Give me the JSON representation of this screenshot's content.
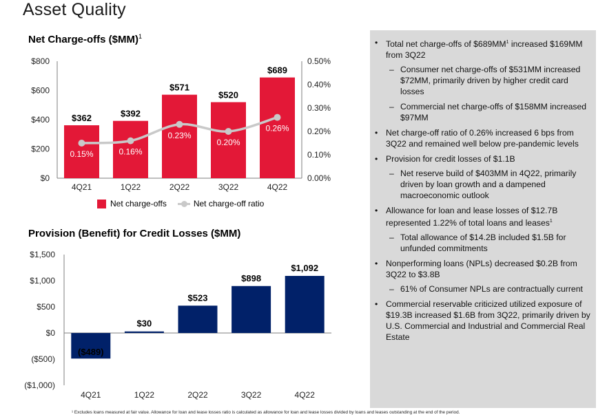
{
  "page": {
    "title": "Asset Quality"
  },
  "chart_data": [
    {
      "type": "bar",
      "title": "Net Charge-offs ($MM)",
      "title_footnote": "1",
      "categories": [
        "4Q21",
        "1Q22",
        "2Q22",
        "3Q22",
        "4Q22"
      ],
      "series": [
        {
          "name": "Net charge-offs",
          "type": "bar",
          "axis": "left",
          "color": "#e31837",
          "values": [
            362,
            392,
            571,
            520,
            689
          ],
          "labels": [
            "$362",
            "$392",
            "$571",
            "$520",
            "$689"
          ]
        },
        {
          "name": "Net charge-off ratio",
          "type": "line",
          "axis": "right",
          "color": "#c9c9c9",
          "values": [
            0.15,
            0.16,
            0.23,
            0.2,
            0.26
          ],
          "labels": [
            "0.15%",
            "0.16%",
            "0.23%",
            "0.20%",
            "0.26%"
          ]
        }
      ],
      "ylim": [
        0,
        800
      ],
      "yticks": [
        "$0",
        "$200",
        "$400",
        "$600",
        "$800"
      ],
      "y2lim": [
        0,
        0.5
      ],
      "y2ticks": [
        "0.00%",
        "0.10%",
        "0.20%",
        "0.30%",
        "0.40%",
        "0.50%"
      ],
      "legend": "bottom",
      "grid": false
    },
    {
      "type": "bar",
      "title": "Provision (Benefit) for Credit Losses ($MM)",
      "categories": [
        "4Q21",
        "1Q22",
        "2Q22",
        "3Q22",
        "4Q22"
      ],
      "series": [
        {
          "color": "#012169",
          "values": [
            -489,
            30,
            523,
            898,
            1092
          ],
          "labels": [
            "($489)",
            "$30",
            "$523",
            "$898",
            "$1,092"
          ]
        }
      ],
      "ylim": [
        -1000,
        1500
      ],
      "yticks": [
        "($1,000)",
        "($500)",
        "$0",
        "$500",
        "$1,000",
        "$1,500"
      ],
      "grid": false
    }
  ],
  "summary": {
    "bullets": [
      {
        "text": "Total net charge-offs of $689MM",
        "sup": "1",
        "text2": " increased $169MM from 3Q22",
        "sub": [
          {
            "text": "Consumer net charge-offs of $531MM increased $72MM, primarily driven by higher credit card losses"
          },
          {
            "text": "Commercial net charge-offs of $158MM increased $97MM"
          }
        ]
      },
      {
        "text": "Net charge-off ratio of 0.26% increased 6 bps from 3Q22 and remained well below pre-pandemic levels"
      },
      {
        "text": "Provision for credit losses of $1.1B",
        "sub": [
          {
            "text": "Net reserve build of $403MM in 4Q22, primarily driven by loan growth and a dampened macroeconomic outlook"
          }
        ]
      },
      {
        "text": "Allowance for loan and lease losses of $12.7B represented 1.22% of total loans and leases",
        "sup": "1",
        "sub": [
          {
            "text": "Total allowance of $14.2B included $1.5B for unfunded commitments"
          }
        ]
      },
      {
        "text": "Nonperforming loans (NPLs) decreased $0.2B from 3Q22 to $3.8B",
        "sub": [
          {
            "text": "61% of Consumer NPLs are contractually current"
          }
        ]
      },
      {
        "text": "Commercial reservable criticized utilized exposure of $19.3B increased $1.6B from 3Q22, primarily driven by U.S. Commercial and Industrial and Commercial Real Estate"
      }
    ]
  },
  "footnote": "¹ Excludes loans measured at fair value. Allowance for loan and lease losses ratio is calculated as allowance for loan and lease losses divided by loans and leases outstanding at the end of the period."
}
